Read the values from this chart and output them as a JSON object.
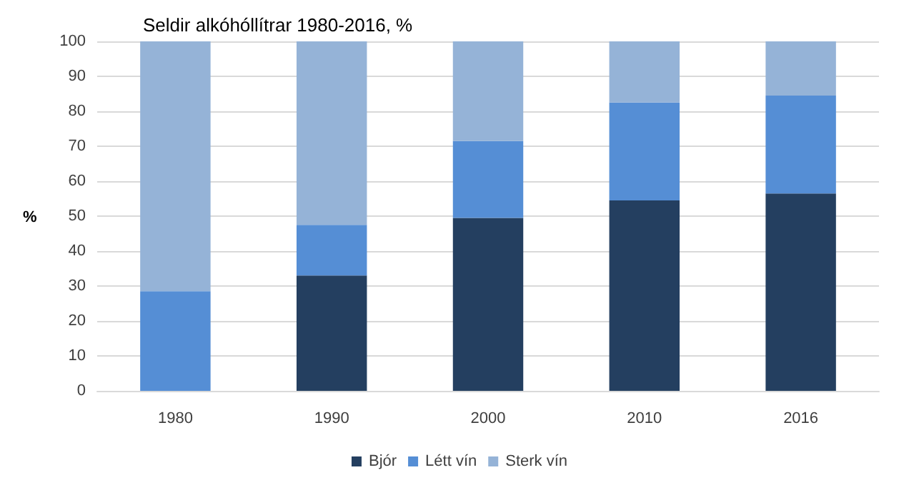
{
  "chart_data": {
    "type": "bar",
    "title": "Seldir alkóhóllítrar 1980-2016, %",
    "ylabel": "%",
    "categories": [
      "1980",
      "1990",
      "2000",
      "2010",
      "2016"
    ],
    "stacked": true,
    "series": [
      {
        "name": "Bjór",
        "color": "#243f60",
        "values": [
          0,
          33,
          49.5,
          54.5,
          56.5
        ]
      },
      {
        "name": "Létt vín",
        "color": "#558ed5",
        "values": [
          28.5,
          14.5,
          22,
          28,
          28
        ]
      },
      {
        "name": "Sterk vín",
        "color": "#95b3d7",
        "values": [
          71.5,
          52.5,
          28.5,
          17.5,
          15.5
        ]
      }
    ],
    "ylim": [
      0,
      100
    ],
    "yticks": [
      0,
      10,
      20,
      30,
      40,
      50,
      60,
      70,
      80,
      90,
      100
    ],
    "grid": "y",
    "legend": "bottom"
  }
}
